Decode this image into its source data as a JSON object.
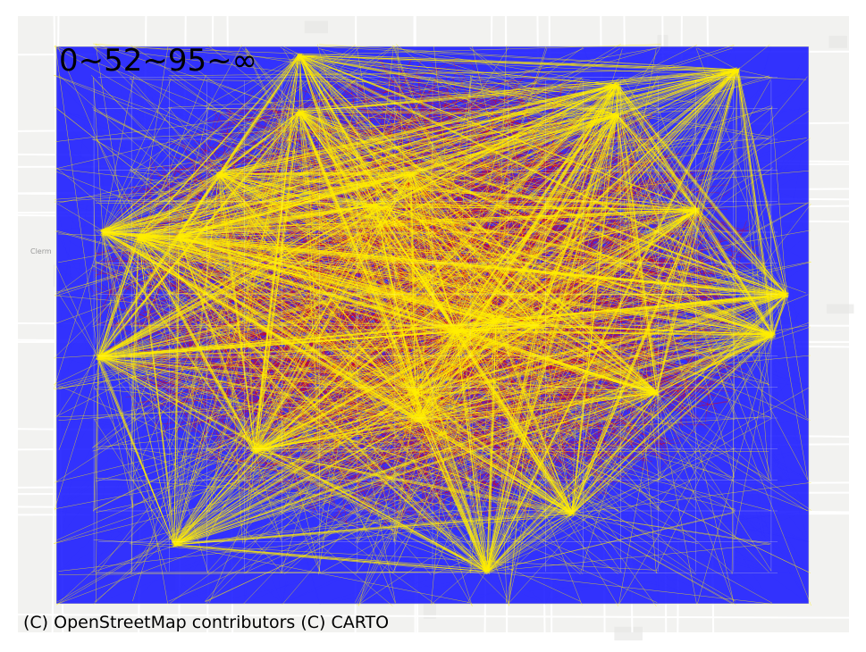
{
  "map": {
    "scale_label": "0~52~95~∞",
    "attribution": "(C) OpenStreetMap contributors (C) CARTO",
    "basemap_place_label": "Clerm",
    "colors": {
      "basemap_bg": "#f2f2f0",
      "basemap_road": "#ffffff",
      "basemap_minor": "#e4e4e2",
      "low": "#1010ff",
      "mid": "#e60000",
      "high": "#ffee00"
    }
  }
}
